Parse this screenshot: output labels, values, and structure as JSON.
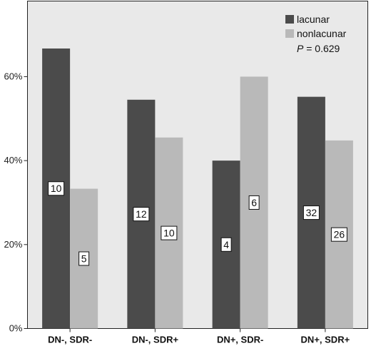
{
  "chart_data": {
    "type": "bar",
    "categories": [
      "DN-, SDR-",
      "DN-, SDR+",
      "DN+, SDR-",
      "DN+, SDR+"
    ],
    "series": [
      {
        "name": "lacunar",
        "color": "#4b4b4b",
        "values": [
          66.7,
          54.5,
          40.0,
          55.2
        ],
        "counts": [
          "10",
          "12",
          "4",
          "32"
        ]
      },
      {
        "name": "nonlacunar",
        "color": "#b9b9b9",
        "values": [
          33.3,
          45.5,
          60.0,
          44.8
        ],
        "counts": [
          "5",
          "10",
          "6",
          "26"
        ]
      }
    ],
    "yticks": [
      {
        "value": 0,
        "label": "0%"
      },
      {
        "value": 20,
        "label": "20%"
      },
      {
        "value": 40,
        "label": "40%"
      },
      {
        "value": 60,
        "label": "60%"
      }
    ],
    "ylim": [
      0,
      78
    ],
    "annotation": "P = 0.629",
    "annotation_prefix": "P",
    "annotation_suffix": " = 0.629",
    "plot_background": "#e9e9e9",
    "legend_position": "top-right",
    "grid": false
  }
}
